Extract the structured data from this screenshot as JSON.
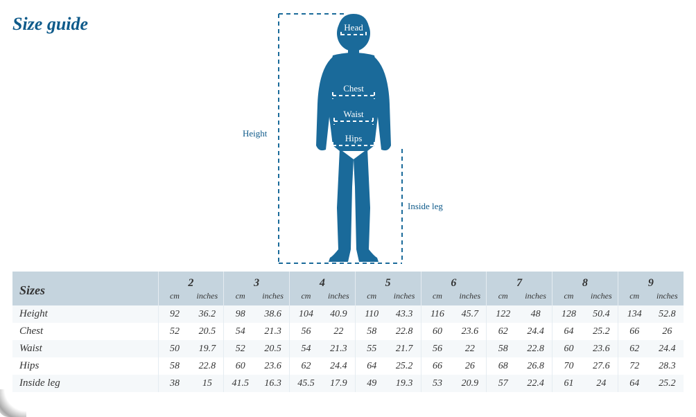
{
  "title": "Size guide",
  "colors": {
    "brand": "#0e5a8a",
    "silhouette": "#1a6a9a",
    "header_bg": "#c5d4de",
    "row_stripe": "#f5f8fa",
    "dash": "#1a6a9a",
    "text": "#333333"
  },
  "diagram": {
    "labels": {
      "height": "Height",
      "head": "Head",
      "chest": "Chest",
      "waist": "Waist",
      "hips": "Hips",
      "inside_leg": "Inside leg"
    }
  },
  "table": {
    "label_header": "Sizes",
    "unit_cm": "cm",
    "unit_in": "inches",
    "sizes": [
      "2",
      "3",
      "4",
      "5",
      "6",
      "7",
      "8",
      "9"
    ],
    "rows": [
      {
        "label": "Height",
        "cm": [
          92,
          98,
          104,
          110,
          116,
          122,
          128,
          134
        ],
        "in": [
          36.2,
          38.6,
          40.9,
          43.3,
          45.7,
          48.0,
          50.4,
          52.8
        ]
      },
      {
        "label": "Chest",
        "cm": [
          52,
          54,
          56,
          58,
          60,
          62,
          64,
          66
        ],
        "in": [
          20.5,
          21.3,
          22.0,
          22.8,
          23.6,
          24.4,
          25.2,
          26.0
        ]
      },
      {
        "label": "Waist",
        "cm": [
          50,
          52,
          54,
          55,
          56,
          58,
          60,
          62
        ],
        "in": [
          19.7,
          20.5,
          21.3,
          21.7,
          22.0,
          22.8,
          23.6,
          24.4
        ]
      },
      {
        "label": "Hips",
        "cm": [
          58,
          60,
          62,
          64,
          66,
          68,
          70,
          72
        ],
        "in": [
          22.8,
          23.6,
          24.4,
          25.2,
          26.0,
          26.8,
          27.6,
          28.3
        ]
      },
      {
        "label": "Inside leg",
        "cm": [
          38,
          41.5,
          45.5,
          49,
          53.0,
          57,
          61,
          64
        ],
        "in": [
          15,
          16.3,
          17.9,
          19.3,
          20.9,
          22.4,
          24.0,
          25.2
        ]
      }
    ]
  }
}
